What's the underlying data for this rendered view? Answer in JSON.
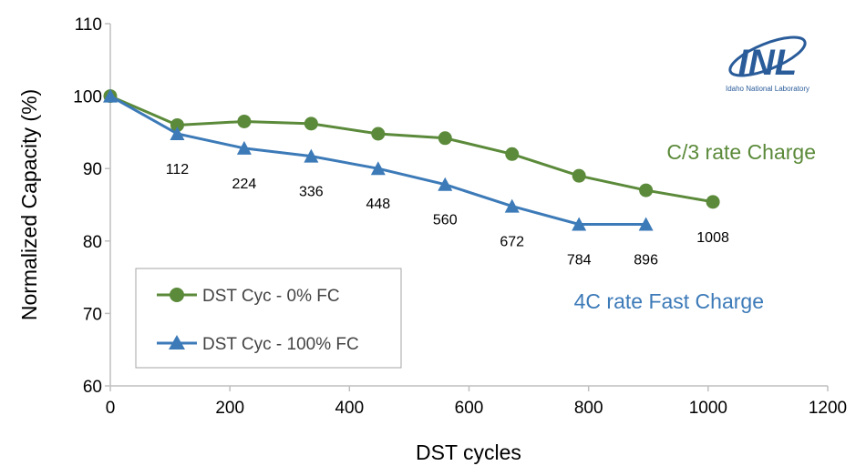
{
  "chart_data": {
    "type": "line",
    "xlabel": "DST cycles",
    "ylabel": "Normalized Capacity (%)",
    "xlim": [
      0,
      1200
    ],
    "ylim": [
      60,
      110
    ],
    "x_ticks": [
      0,
      200,
      400,
      600,
      800,
      1000,
      1200
    ],
    "y_ticks": [
      60,
      70,
      80,
      90,
      100,
      110
    ],
    "grid": false,
    "legend_placement": "bottom-left",
    "series": [
      {
        "name": "DST Cyc - 0% FC",
        "marker": "circle",
        "color": "#5b8a3a",
        "x": [
          0,
          112,
          224,
          336,
          448,
          560,
          672,
          784,
          896,
          1008
        ],
        "y": [
          100,
          96.0,
          96.5,
          96.2,
          94.8,
          94.2,
          92.0,
          89.0,
          87.0,
          85.4
        ]
      },
      {
        "name": "DST Cyc - 100% FC",
        "marker": "triangle",
        "color": "#3c7ab8",
        "x": [
          0,
          112,
          224,
          336,
          448,
          560,
          672,
          784,
          896
        ],
        "y": [
          100,
          94.8,
          92.8,
          91.7,
          90.0,
          87.8,
          84.8,
          82.3,
          82.3
        ]
      }
    ],
    "point_labels": [
      "112",
      "224",
      "336",
      "448",
      "560",
      "672",
      "784",
      "896",
      "1008"
    ],
    "annotations": [
      {
        "text": "C/3 rate Charge",
        "color": "#5b8a3a"
      },
      {
        "text": "4C rate Fast Charge",
        "color": "#3c7ab8"
      }
    ]
  },
  "logo": {
    "text": "INL",
    "subtitle": "Idaho National Laboratory"
  }
}
